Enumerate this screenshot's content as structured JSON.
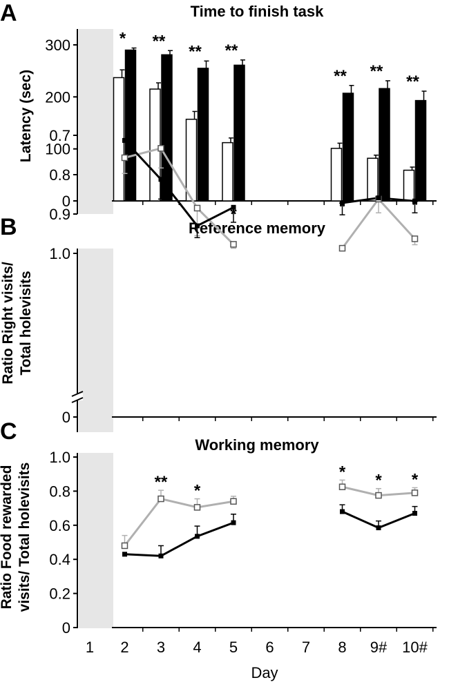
{
  "chart_data": [
    {
      "panel": "A",
      "type": "bar",
      "title": "Time to finish task",
      "ylabel": "Latency (sec)",
      "xlabel": "",
      "ylim": [
        0,
        300
      ],
      "yticks": [
        "0",
        "100",
        "200",
        "300"
      ],
      "categories": [
        "2",
        "3",
        "4",
        "5",
        "8",
        "9#",
        "10#"
      ],
      "series": [
        {
          "fill": "#ffffff",
          "values": [
            237,
            215,
            157,
            112,
            101,
            82,
            59
          ],
          "errors": [
            15,
            12,
            15,
            9,
            10,
            6,
            6
          ]
        },
        {
          "fill": "#000000",
          "values": [
            290,
            281,
            255,
            261,
            207,
            216,
            193
          ],
          "errors": [
            4,
            8,
            14,
            10,
            15,
            15,
            18
          ]
        }
      ],
      "significance": [
        {
          "category": "2",
          "label": "*"
        },
        {
          "category": "3",
          "label": "**"
        },
        {
          "category": "4",
          "label": "**"
        },
        {
          "category": "5",
          "label": "**"
        },
        {
          "category": "8",
          "label": "**"
        },
        {
          "category": "9#",
          "label": "**"
        },
        {
          "category": "10#",
          "label": "**"
        }
      ],
      "shaded_day": "1"
    },
    {
      "panel": "B",
      "type": "line",
      "title": "Reference memory",
      "ylabel_lines": [
        "Ratio Right visits/",
        "Total holevisits"
      ],
      "ylim": [
        0.65,
        1.0
      ],
      "axis_break": true,
      "yticks": [
        "1.0",
        "0.9",
        "0.8",
        "0.7",
        "0"
      ],
      "segments": [
        [
          2,
          3,
          4,
          5
        ],
        [
          8,
          9,
          10
        ]
      ],
      "series": [
        {
          "color": "#b0b0b0",
          "marker": "open-square",
          "x": [
            2,
            3,
            4,
            5,
            8,
            9,
            10
          ],
          "values": [
            0.757,
            0.733,
            0.885,
            0.977,
            0.987,
            0.862,
            0.963
          ],
          "errors": [
            0.04,
            0.05,
            0.07,
            0.01,
            0.005,
            0.035,
            0.015
          ]
        },
        {
          "color": "#000000",
          "marker": "filled-square",
          "x": [
            2,
            3,
            4,
            5,
            8,
            9,
            10
          ],
          "values": [
            0.713,
            0.812,
            0.93,
            0.883,
            0.872,
            0.859,
            0.867
          ],
          "errors": [
            0.0,
            0.05,
            0.03,
            0.038,
            0.03,
            0.0,
            0.03
          ]
        }
      ],
      "significance": [
        {
          "x": 5,
          "label": "*"
        },
        {
          "x": 8,
          "label": "*"
        },
        {
          "x": 10,
          "label": "*"
        }
      ],
      "shaded_day": "1"
    },
    {
      "panel": "C",
      "type": "line",
      "title": "Working memory",
      "ylabel_lines": [
        "Ratio Food rewarded",
        "visits/ Total holevisits"
      ],
      "xlabel": "Day",
      "ylim": [
        0,
        1.0
      ],
      "yticks": [
        "0",
        "0.2",
        "0.4",
        "0.6",
        "0.8",
        "1.0"
      ],
      "xticks": [
        "1",
        "2",
        "3",
        "4",
        "5",
        "6",
        "7",
        "8",
        "9#",
        "10#"
      ],
      "segments": [
        [
          2,
          3,
          4,
          5
        ],
        [
          8,
          9,
          10
        ]
      ],
      "series": [
        {
          "color": "#b0b0b0",
          "marker": "open-square",
          "x": [
            2,
            3,
            4,
            5,
            8,
            9,
            10
          ],
          "values": [
            0.48,
            0.755,
            0.705,
            0.74,
            0.825,
            0.775,
            0.79
          ],
          "errors": [
            0.06,
            0.05,
            0.05,
            0.03,
            0.04,
            0.04,
            0.03
          ]
        },
        {
          "color": "#000000",
          "marker": "filled-square",
          "x": [
            2,
            3,
            4,
            5,
            8,
            9,
            10
          ],
          "values": [
            0.43,
            0.42,
            0.535,
            0.615,
            0.68,
            0.585,
            0.67
          ],
          "errors": [
            0.0,
            0.06,
            0.06,
            0.05,
            0.04,
            0.04,
            0.04
          ]
        }
      ],
      "significance": [
        {
          "x": 3,
          "label": "**"
        },
        {
          "x": 4,
          "label": "*"
        },
        {
          "x": 8,
          "label": "*"
        },
        {
          "x": 9,
          "label": "*"
        },
        {
          "x": 10,
          "label": "*"
        }
      ],
      "shaded_day": "1"
    }
  ]
}
